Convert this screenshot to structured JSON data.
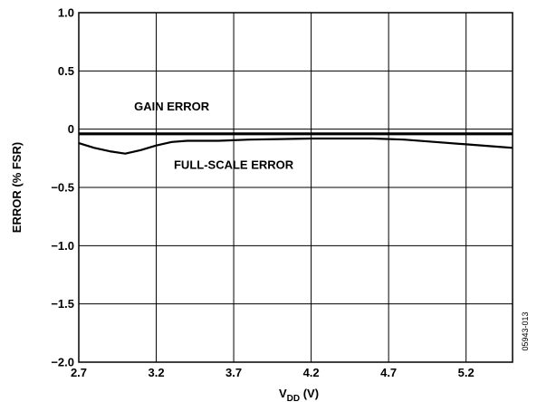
{
  "chart_data": {
    "type": "line",
    "xlabel_main": "V",
    "xlabel_sub": "DD",
    "xlabel_unit": " (V)",
    "ylabel": "ERROR (% FSR)",
    "xlim": [
      2.7,
      5.5
    ],
    "ylim": [
      -2.0,
      1.0
    ],
    "x_ticks": [
      "2.7",
      "3.2",
      "3.7",
      "4.2",
      "4.7",
      "5.2"
    ],
    "x_tick_values": [
      2.7,
      3.2,
      3.7,
      4.2,
      4.7,
      5.2
    ],
    "y_ticks": [
      "1.0",
      "0.5",
      "0",
      "−0.5",
      "−1.0",
      "−1.5",
      "−2.0"
    ],
    "y_tick_values": [
      1.0,
      0.5,
      0,
      -0.5,
      -1.0,
      -1.5,
      -2.0
    ],
    "grid": true,
    "series": [
      {
        "name": "GAIN ERROR",
        "x": [
          2.7,
          3.0,
          3.5,
          4.0,
          4.5,
          5.0,
          5.5
        ],
        "y": [
          -0.04,
          -0.04,
          -0.04,
          -0.04,
          -0.04,
          -0.04,
          -0.04
        ]
      },
      {
        "name": "FULL-SCALE ERROR",
        "x": [
          2.7,
          2.8,
          2.9,
          3.0,
          3.1,
          3.2,
          3.3,
          3.4,
          3.6,
          3.8,
          4.0,
          4.2,
          4.4,
          4.6,
          4.8,
          5.0,
          5.2,
          5.4,
          5.5
        ],
        "y": [
          -0.12,
          -0.16,
          -0.19,
          -0.21,
          -0.18,
          -0.14,
          -0.11,
          -0.1,
          -0.1,
          -0.09,
          -0.085,
          -0.08,
          -0.08,
          -0.08,
          -0.09,
          -0.11,
          -0.13,
          -0.15,
          -0.16
        ]
      }
    ],
    "annotations": [
      {
        "text": "GAIN ERROR",
        "x": 3.3,
        "y": 0.16
      },
      {
        "text": "FULL-SCALE ERROR",
        "x": 3.7,
        "y": -0.34
      }
    ],
    "figure_id": "05943-013"
  }
}
